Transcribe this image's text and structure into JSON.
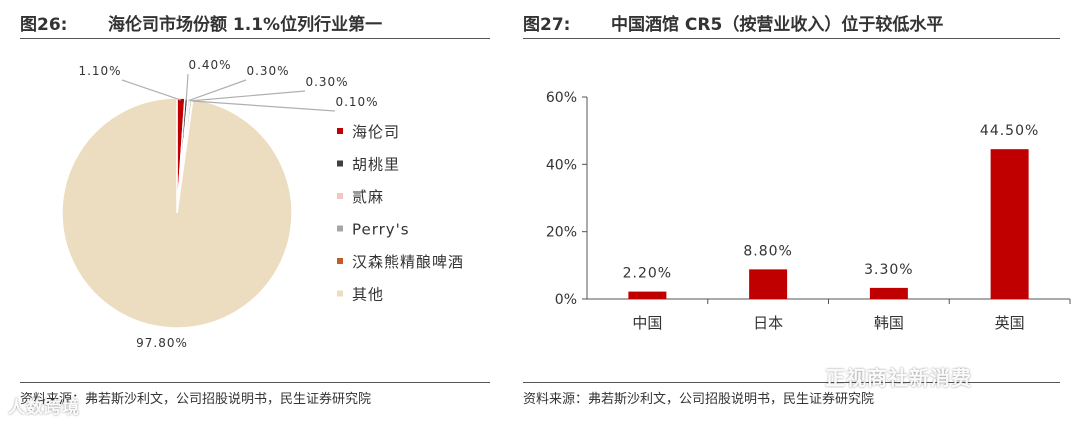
{
  "left": {
    "fig_num": "图26:",
    "fig_title": "海伦司市场份额 1.1%位列行业第一",
    "source": "资料来源：弗若斯沙利文，公司招股说明书，民生证券研究院"
  },
  "right": {
    "fig_num": "图27:",
    "fig_title": "中国酒馆 CR5（按营业收入）位于较低水平",
    "source": "资料来源：弗若斯沙利文，公司招股说明书，民生证券研究院"
  },
  "watermarks": {
    "right": "正视商社新消费",
    "left": "人数跨境"
  },
  "chart_data": [
    {
      "type": "pie",
      "title": "",
      "series": [
        {
          "categories": [
            "海伦司",
            "胡桃里",
            "贰麻",
            "Perry's",
            "汉森熊精酿啤酒",
            "其他"
          ],
          "values": [
            1.1,
            0.4,
            0.3,
            0.3,
            0.1,
            97.8
          ],
          "labels": [
            "1.10%",
            "0.40%",
            "0.30%",
            "0.30%",
            "0.10%",
            "97.80%"
          ],
          "colors": [
            "#c00000",
            "#404040",
            "#f4c7c3",
            "#a6a6a6",
            "#c65a28",
            "#ecdcc0"
          ]
        }
      ],
      "legend_position": "right"
    },
    {
      "type": "bar",
      "title": "",
      "categories": [
        "中国",
        "日本",
        "韩国",
        "英国"
      ],
      "series": [
        {
          "values": [
            2.2,
            8.8,
            3.3,
            44.5
          ],
          "labels": [
            "2.20%",
            "8.80%",
            "3.30%",
            "44.50%"
          ],
          "color": "#c00000"
        }
      ],
      "y_ticks": [
        "0%",
        "20%",
        "40%",
        "60%"
      ],
      "ylim": [
        0,
        60
      ],
      "grid": false
    }
  ]
}
